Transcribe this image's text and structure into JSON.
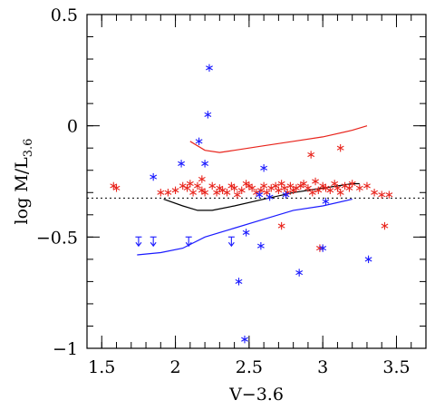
{
  "chart_data": {
    "type": "scatter",
    "xlabel": "V−3.6",
    "ylabel_main": "log M/L",
    "ylabel_sub": "3.6",
    "xlim": [
      1.4,
      3.7
    ],
    "ylim": [
      -1.0,
      0.5
    ],
    "xticks": [
      1.5,
      2,
      2.5,
      3,
      3.5
    ],
    "xtick_labels": [
      "1.5",
      "2",
      "2.5",
      "3",
      "3.5"
    ],
    "yticks": [
      -1,
      -0.5,
      0,
      0.5
    ],
    "ytick_labels": [
      "−1",
      "−0.5",
      "0",
      "0.5"
    ],
    "grid": false,
    "colors": {
      "red": "#e8241c",
      "blue": "#1a1aff",
      "black": "#000000"
    },
    "reference_line": {
      "y": -0.325,
      "style": "dotted",
      "color": "#000000"
    },
    "series": [
      {
        "marker": "asterisk",
        "color": "#e8241c",
        "points": [
          [
            1.58,
            -0.27
          ],
          [
            1.6,
            -0.28
          ],
          [
            1.9,
            -0.3
          ],
          [
            1.95,
            -0.3
          ],
          [
            2.0,
            -0.29
          ],
          [
            2.05,
            -0.27
          ],
          [
            2.08,
            -0.28
          ],
          [
            2.1,
            -0.26
          ],
          [
            2.12,
            -0.3
          ],
          [
            2.15,
            -0.27
          ],
          [
            2.18,
            -0.29
          ],
          [
            2.2,
            -0.3
          ],
          [
            2.25,
            -0.27
          ],
          [
            2.28,
            -0.3
          ],
          [
            2.3,
            -0.28
          ],
          [
            2.32,
            -0.29
          ],
          [
            2.35,
            -0.3
          ],
          [
            2.38,
            -0.27
          ],
          [
            2.4,
            -0.28
          ],
          [
            2.42,
            -0.31
          ],
          [
            2.45,
            -0.29
          ],
          [
            2.48,
            -0.26
          ],
          [
            2.5,
            -0.27
          ],
          [
            2.52,
            -0.28
          ],
          [
            2.55,
            -0.3
          ],
          [
            2.58,
            -0.29
          ],
          [
            2.6,
            -0.27
          ],
          [
            2.62,
            -0.3
          ],
          [
            2.65,
            -0.28
          ],
          [
            2.68,
            -0.27
          ],
          [
            2.7,
            -0.29
          ],
          [
            2.72,
            -0.26
          ],
          [
            2.74,
            -0.28
          ],
          [
            2.76,
            -0.3
          ],
          [
            2.78,
            -0.27
          ],
          [
            2.8,
            -0.29
          ],
          [
            2.82,
            -0.28
          ],
          [
            2.85,
            -0.27
          ],
          [
            2.87,
            -0.26
          ],
          [
            2.9,
            -0.28
          ],
          [
            2.93,
            -0.3
          ],
          [
            2.95,
            -0.25
          ],
          [
            2.97,
            -0.29
          ],
          [
            3.0,
            -0.27
          ],
          [
            3.02,
            -0.28
          ],
          [
            3.05,
            -0.29
          ],
          [
            3.08,
            -0.26
          ],
          [
            3.1,
            -0.28
          ],
          [
            3.12,
            -0.3
          ],
          [
            3.15,
            -0.27
          ],
          [
            3.18,
            -0.28
          ],
          [
            3.2,
            -0.26
          ],
          [
            3.25,
            -0.28
          ],
          [
            3.3,
            -0.27
          ],
          [
            3.35,
            -0.3
          ],
          [
            3.4,
            -0.31
          ],
          [
            3.45,
            -0.31
          ],
          [
            2.92,
            -0.13
          ],
          [
            3.12,
            -0.1
          ],
          [
            2.98,
            -0.55
          ],
          [
            2.72,
            -0.45
          ],
          [
            3.42,
            -0.45
          ],
          [
            2.18,
            -0.24
          ]
        ]
      },
      {
        "marker": "asterisk",
        "color": "#1a1aff",
        "points": [
          [
            2.23,
            0.26
          ],
          [
            2.22,
            0.05
          ],
          [
            2.16,
            -0.07
          ],
          [
            1.85,
            -0.23
          ],
          [
            2.04,
            -0.17
          ],
          [
            2.2,
            -0.17
          ],
          [
            2.6,
            -0.19
          ],
          [
            2.57,
            -0.31
          ],
          [
            2.64,
            -0.32
          ],
          [
            2.75,
            -0.31
          ],
          [
            2.48,
            -0.48
          ],
          [
            2.58,
            -0.54
          ],
          [
            2.43,
            -0.7
          ],
          [
            2.47,
            -0.96
          ],
          [
            2.84,
            -0.66
          ],
          [
            3.0,
            -0.55
          ],
          [
            3.02,
            -0.34
          ],
          [
            3.31,
            -0.6
          ]
        ]
      },
      {
        "marker": "upper-limit",
        "color": "#1a1aff",
        "points": [
          [
            1.75,
            -0.52
          ],
          [
            1.85,
            -0.52
          ],
          [
            2.09,
            -0.52
          ],
          [
            2.38,
            -0.52
          ]
        ]
      }
    ],
    "curves": [
      {
        "color": "#e8241c",
        "points": [
          [
            2.1,
            -0.07
          ],
          [
            2.2,
            -0.11
          ],
          [
            2.3,
            -0.12
          ],
          [
            2.4,
            -0.11
          ],
          [
            2.6,
            -0.09
          ],
          [
            2.8,
            -0.07
          ],
          [
            3.0,
            -0.05
          ],
          [
            3.2,
            -0.02
          ],
          [
            3.3,
            0.0
          ]
        ]
      },
      {
        "color": "#000000",
        "points": [
          [
            1.92,
            -0.33
          ],
          [
            2.05,
            -0.36
          ],
          [
            2.15,
            -0.38
          ],
          [
            2.25,
            -0.38
          ],
          [
            2.4,
            -0.36
          ],
          [
            2.6,
            -0.33
          ],
          [
            2.8,
            -0.3
          ],
          [
            3.0,
            -0.28
          ],
          [
            3.2,
            -0.26
          ],
          [
            3.25,
            -0.26
          ]
        ]
      },
      {
        "color": "#1a1aff",
        "points": [
          [
            1.74,
            -0.58
          ],
          [
            1.9,
            -0.57
          ],
          [
            2.05,
            -0.55
          ],
          [
            2.2,
            -0.5
          ],
          [
            2.4,
            -0.46
          ],
          [
            2.6,
            -0.42
          ],
          [
            2.8,
            -0.38
          ],
          [
            3.0,
            -0.36
          ],
          [
            3.2,
            -0.33
          ]
        ]
      }
    ]
  }
}
